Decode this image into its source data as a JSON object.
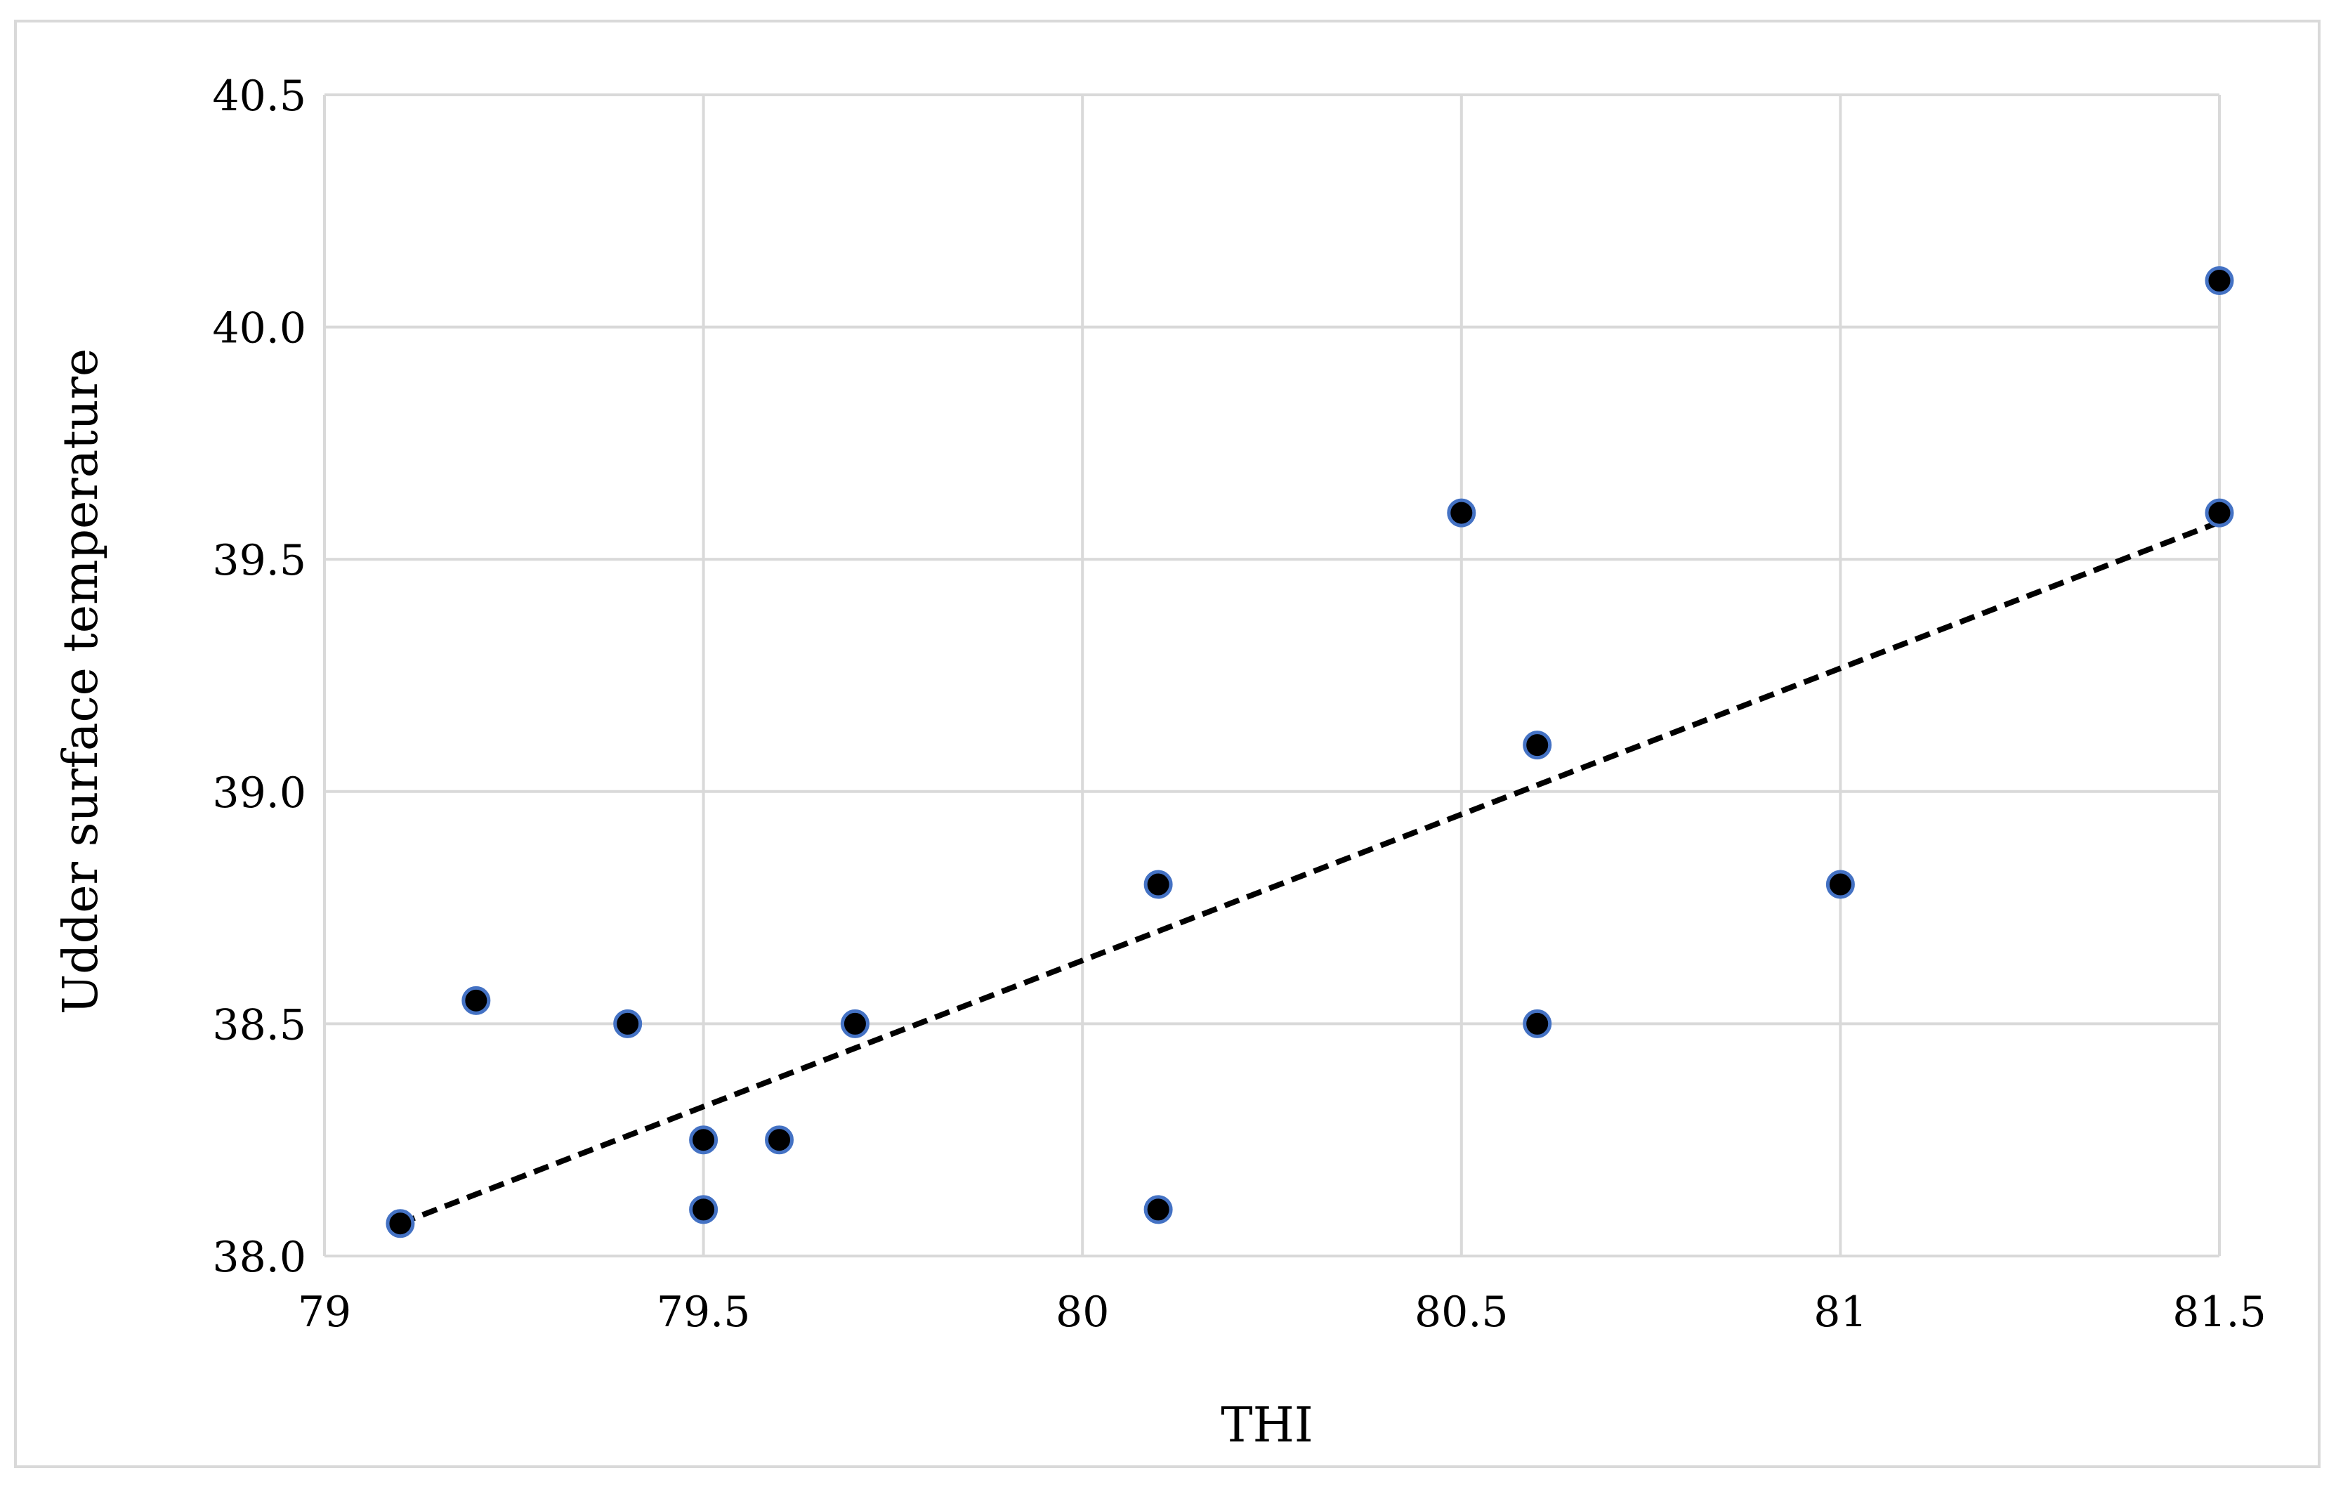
{
  "chart_data": {
    "type": "scatter",
    "title": "",
    "xlabel": "THI",
    "ylabel": "Udder surface temperature",
    "xlim": [
      79,
      81.5
    ],
    "ylim": [
      38.0,
      40.5
    ],
    "xticks": [
      "79",
      "79.5",
      "80",
      "80.5",
      "81",
      "81.5"
    ],
    "yticks": [
      "38.0",
      "38.5",
      "39.0",
      "39.5",
      "40.0",
      "40.5"
    ],
    "grid": true,
    "legend": "none",
    "series": [
      {
        "points": [
          {
            "x": 79.1,
            "y": 38.07
          },
          {
            "x": 79.2,
            "y": 38.55
          },
          {
            "x": 79.4,
            "y": 38.5
          },
          {
            "x": 79.5,
            "y": 38.25
          },
          {
            "x": 79.5,
            "y": 38.1
          },
          {
            "x": 79.6,
            "y": 38.25
          },
          {
            "x": 79.7,
            "y": 38.5
          },
          {
            "x": 80.1,
            "y": 38.8
          },
          {
            "x": 80.1,
            "y": 38.1
          },
          {
            "x": 80.5,
            "y": 39.6
          },
          {
            "x": 80.6,
            "y": 39.1
          },
          {
            "x": 80.6,
            "y": 38.5
          },
          {
            "x": 81.0,
            "y": 38.8
          },
          {
            "x": 81.5,
            "y": 40.1
          },
          {
            "x": 81.5,
            "y": 39.6
          }
        ]
      }
    ],
    "trendline": {
      "type": "linear",
      "style": "dashed",
      "x": [
        79.1,
        81.5
      ],
      "y": [
        38.07,
        39.58
      ]
    },
    "colors": {
      "marker_fill": "#000000",
      "marker_stroke": "#4472c4",
      "trendline": "#000000",
      "grid": "#d9d9d9"
    }
  }
}
